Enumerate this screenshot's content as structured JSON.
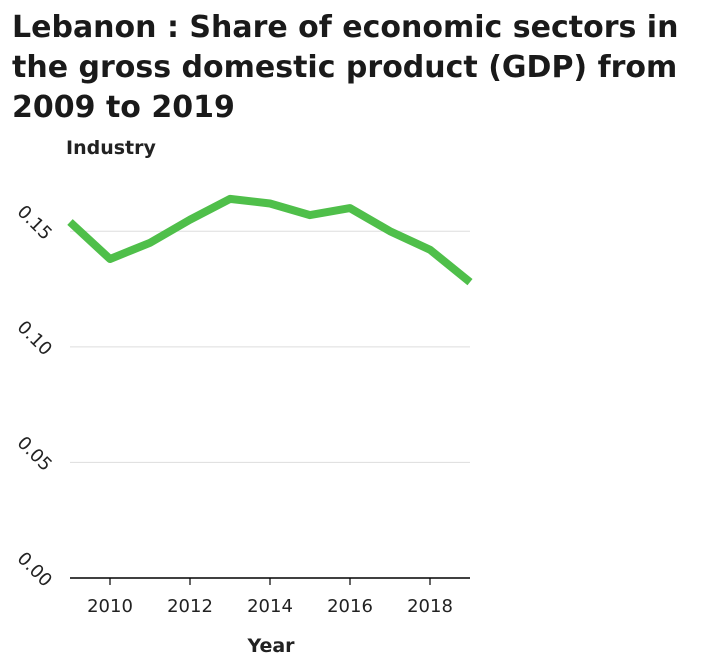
{
  "chart_data": {
    "type": "line",
    "title": "Lebanon : Share of economic sectors in the gross domestic product (GDP) from 2009 to 2019",
    "xlabel": "Year",
    "ylabel": "Industry",
    "x": [
      2009,
      2010,
      2011,
      2012,
      2013,
      2014,
      2015,
      2016,
      2017,
      2018,
      2019
    ],
    "series": [
      {
        "values": [
          0.154,
          0.138,
          0.145,
          0.155,
          0.164,
          0.162,
          0.157,
          0.16,
          0.15,
          0.142,
          0.128
        ],
        "color": "#4fbf4a"
      }
    ],
    "xticks": [
      2010,
      2012,
      2014,
      2016,
      2018
    ],
    "xtick_labels": [
      "2010",
      "2012",
      "2014",
      "2016",
      "2018"
    ],
    "yticks": [
      0.0,
      0.05,
      0.1,
      0.15
    ],
    "ytick_labels": [
      "0.00",
      "0.05",
      "0.10",
      "0.15"
    ],
    "xlim": [
      2009,
      2019
    ],
    "ylim": [
      0.0,
      0.17
    ],
    "grid": "horizontal",
    "gridline_color": "#dddddd",
    "axis_color": "#000000"
  }
}
